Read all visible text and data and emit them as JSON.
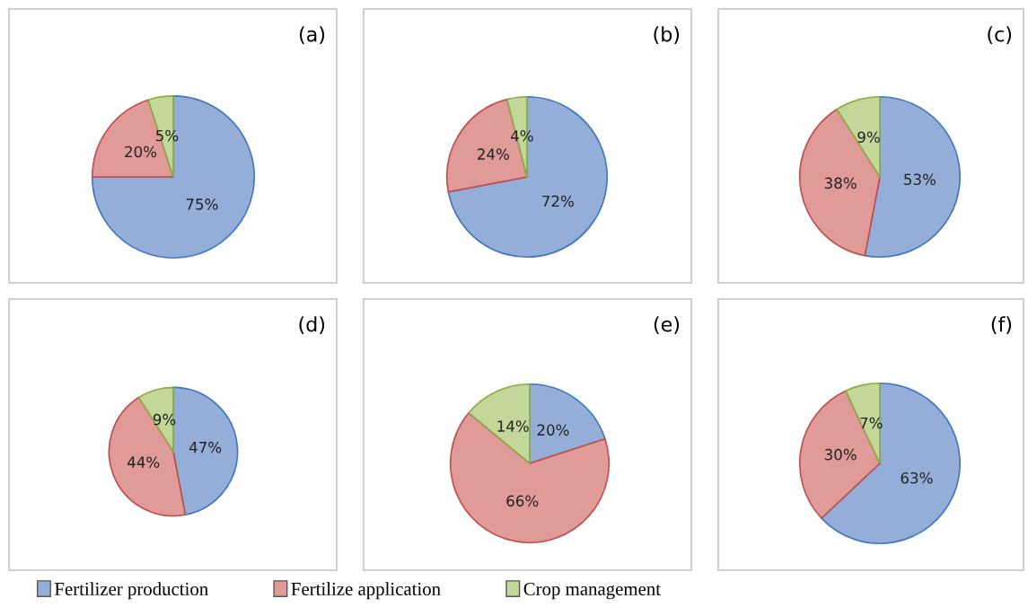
{
  "chart_data": [
    {
      "type": "pie",
      "title": "(a)",
      "categories": [
        "Fertilizer production",
        "Fertilize application",
        "Crop management"
      ],
      "values": [
        75,
        20,
        5
      ],
      "value_labels": [
        "75%",
        "20%",
        "5%"
      ],
      "colors": [
        "#95aed8",
        "#e09a98",
        "#c4d79b"
      ],
      "legend": "bottom"
    },
    {
      "type": "pie",
      "title": "(b)",
      "categories": [
        null,
        null,
        null
      ],
      "values": [
        72,
        24,
        4
      ],
      "value_labels": [
        "72%",
        "24%",
        "4%"
      ],
      "colors": [
        "#95aed8",
        "#e09a98",
        "#c4d79b"
      ]
    },
    {
      "type": "pie",
      "title": "(c)",
      "categories": [
        null,
        null,
        null
      ],
      "values": [
        53,
        38,
        9
      ],
      "value_labels": [
        "53%",
        "38%",
        "9%"
      ],
      "colors": [
        "#95aed8",
        "#e09a98",
        "#c4d79b"
      ]
    },
    {
      "type": "pie",
      "title": "(d)",
      "categories": [
        null,
        null,
        null
      ],
      "values": [
        47,
        44,
        9
      ],
      "value_labels": [
        "47%",
        "44%",
        "9%"
      ],
      "colors": [
        "#95aed8",
        "#e09a98",
        "#c4d79b"
      ]
    },
    {
      "type": "pie",
      "title": "(e)",
      "categories": [
        null,
        null,
        null
      ],
      "values": [
        20,
        66,
        14
      ],
      "value_labels": [
        "20%",
        "66%",
        "14%"
      ],
      "colors": [
        "#95aed8",
        "#e09a98",
        "#c4d79b"
      ]
    },
    {
      "type": "pie",
      "title": "(f)",
      "categories": [
        null,
        null,
        null
      ],
      "values": [
        63,
        30,
        7
      ],
      "value_labels": [
        "63%",
        "30%",
        "7%"
      ],
      "colors": [
        "#95aed8",
        "#e09a98",
        "#c4d79b"
      ]
    }
  ]
}
